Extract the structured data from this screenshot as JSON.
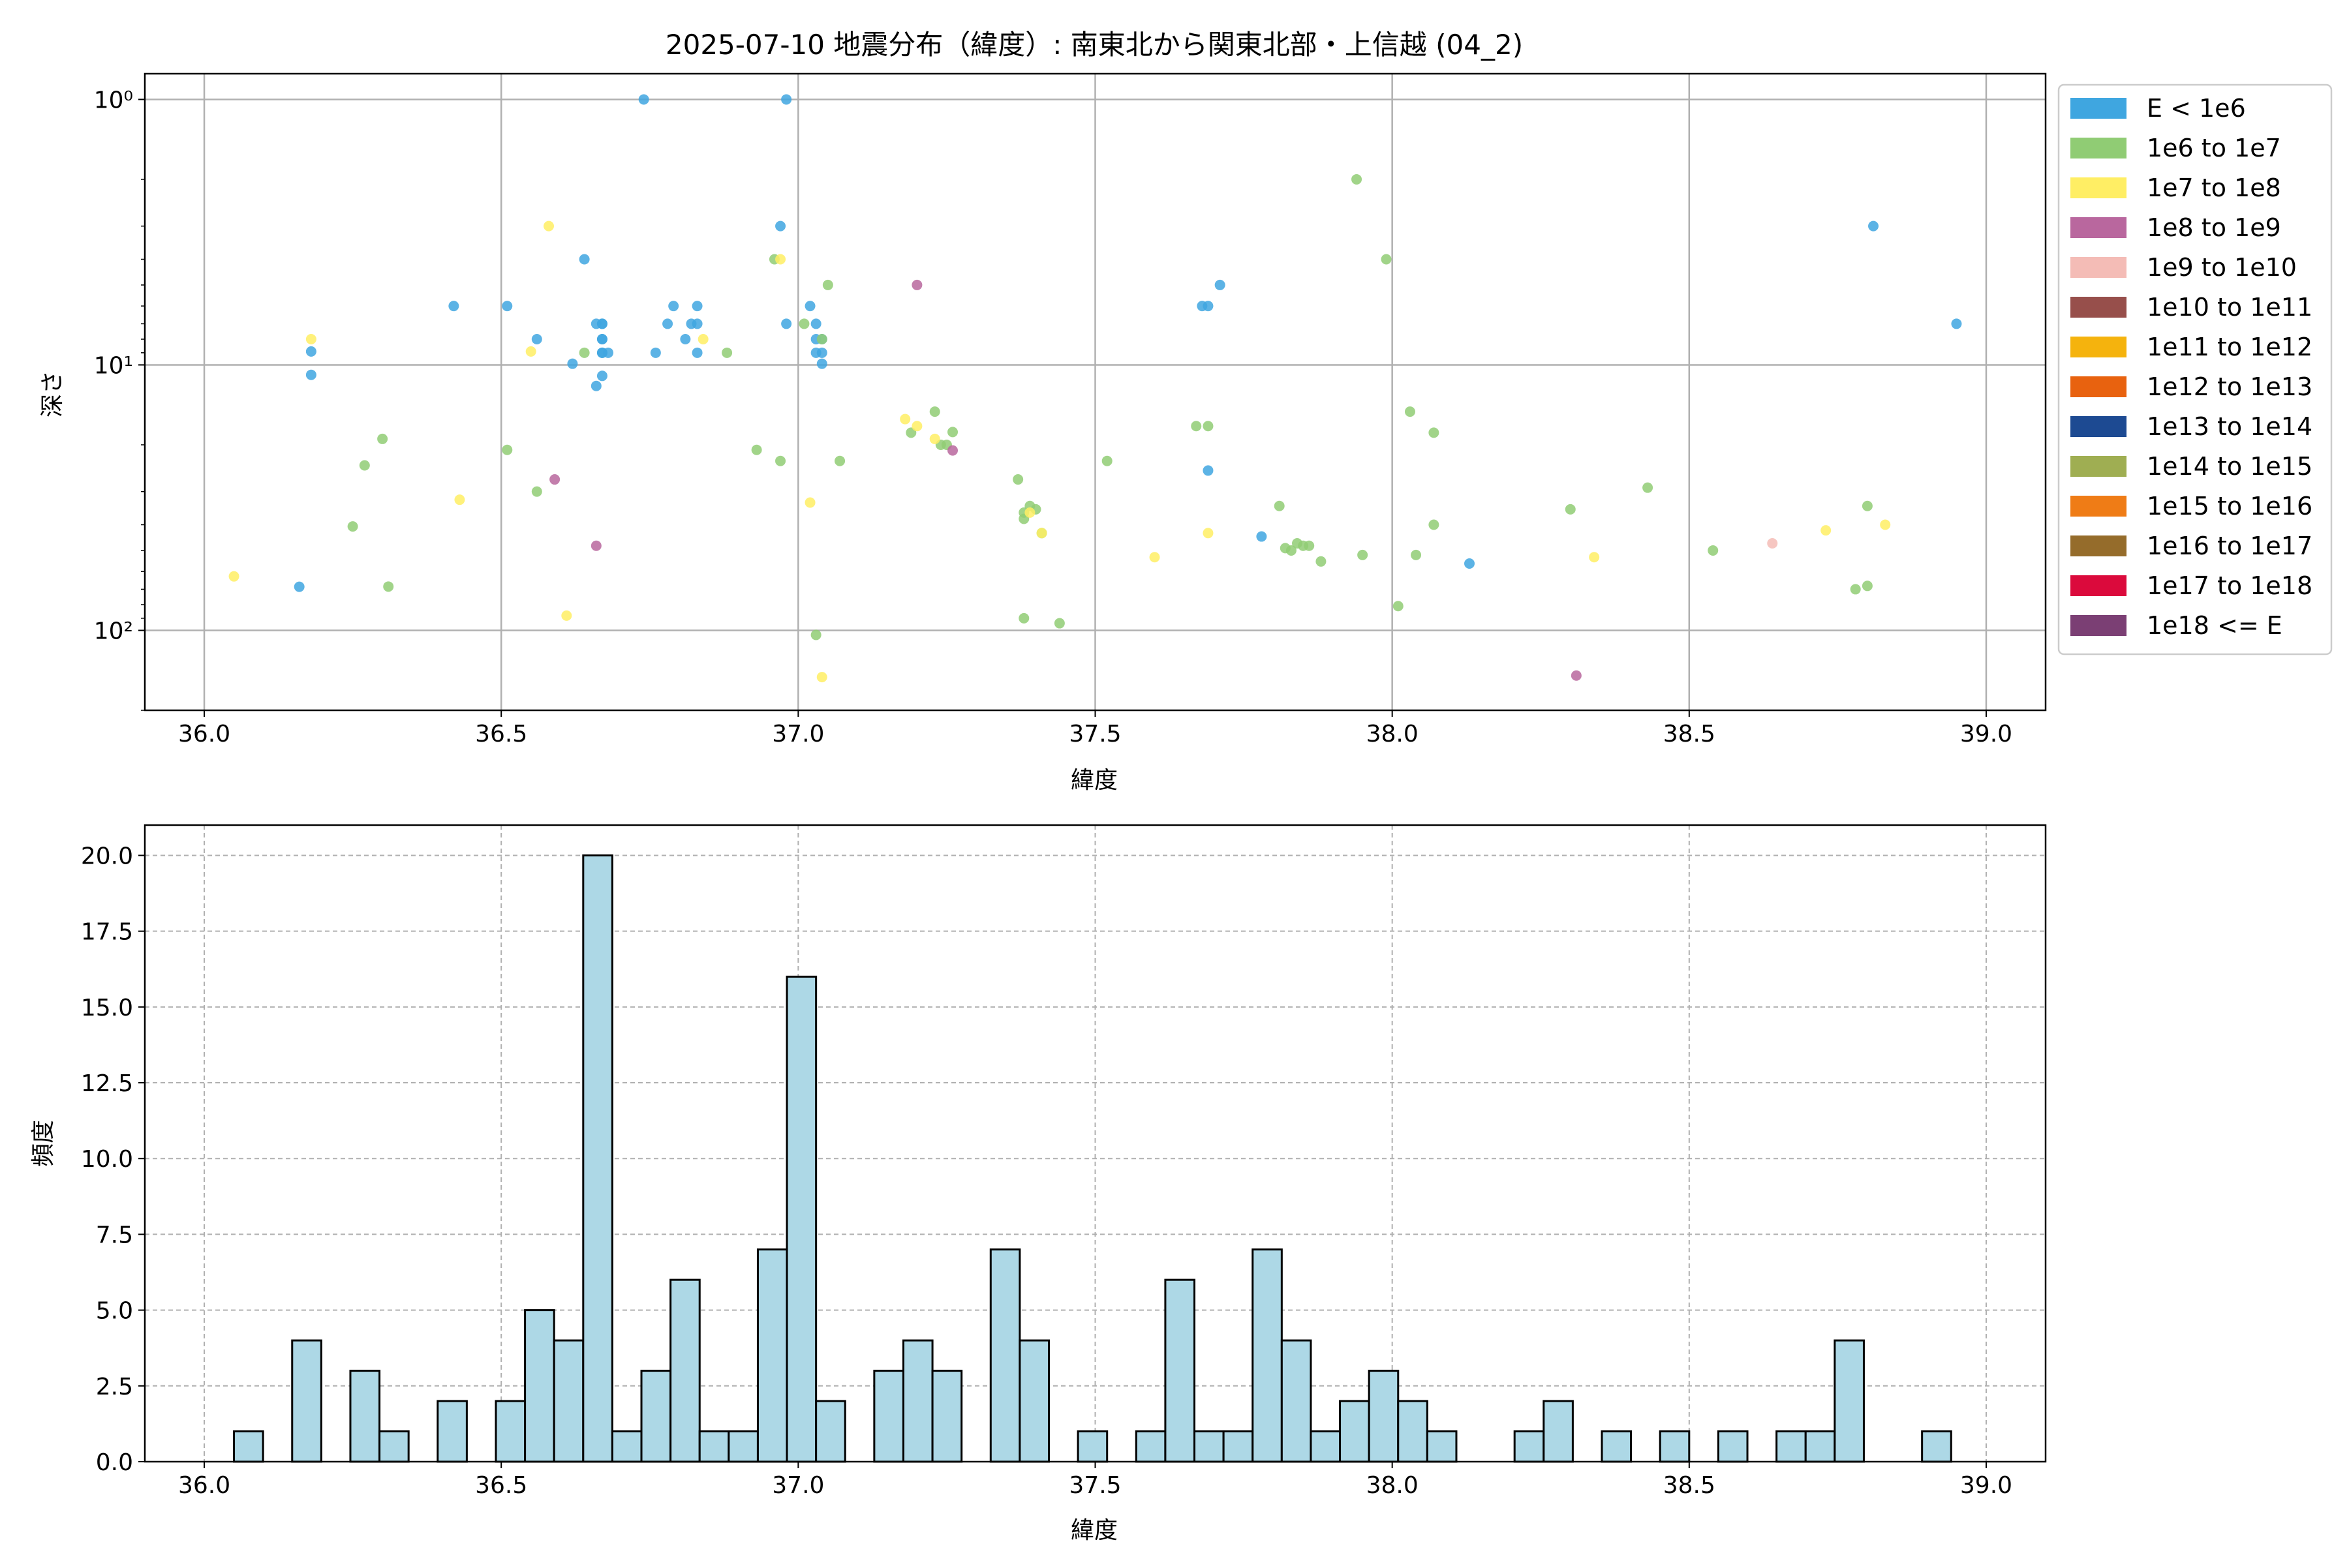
{
  "chart_data": [
    {
      "type": "scatter",
      "title": "2025-07-10 地震分布（緯度）: 南東北から関東北部・上信越 (04_2)",
      "xlabel": "緯度",
      "ylabel": "深さ",
      "xlim": [
        35.9,
        39.1
      ],
      "ylim": [
        200,
        0.8
      ],
      "y_scale": "log",
      "y_inverted": true,
      "xticks": [
        36.0,
        36.5,
        37.0,
        37.5,
        38.0,
        38.5,
        39.0
      ],
      "xtick_labels": [
        "36.0",
        "36.5",
        "37.0",
        "37.5",
        "38.0",
        "38.5",
        "39.0"
      ],
      "yticks": [
        1,
        10,
        100
      ],
      "ytick_labels": [
        "10⁰",
        "10¹",
        "10²"
      ],
      "grid": true,
      "legend_position": "outside-right",
      "legend": [
        {
          "label": "E < 1e6",
          "color": "#3fa6e0"
        },
        {
          "label": "1e6 to 1e7",
          "color": "#90cc74"
        },
        {
          "label": "1e7 to 1e8",
          "color": "#ffee64"
        },
        {
          "label": "1e8 to 1e9",
          "color": "#b9679e"
        },
        {
          "label": "1e9 to 1e10",
          "color": "#f4bcb6"
        },
        {
          "label": "1e10 to 1e11",
          "color": "#974f4b"
        },
        {
          "label": "1e11 to 1e12",
          "color": "#f5b30d"
        },
        {
          "label": "1e12 to 1e13",
          "color": "#e8620f"
        },
        {
          "label": "1e13 to 1e14",
          "color": "#1d4a92"
        },
        {
          "label": "1e14 to 1e15",
          "color": "#9fae52"
        },
        {
          "label": "1e15 to 1e16",
          "color": "#ef7c16"
        },
        {
          "label": "1e16 to 1e17",
          "color": "#956c2b"
        },
        {
          "label": "1e17 to 1e18",
          "color": "#db0a3c"
        },
        {
          "label": "1e18 <= E",
          "color": "#7b3f74"
        }
      ],
      "series": [
        {
          "color": "#3fa6e0",
          "points": [
            [
              36.16,
              68.5
            ],
            [
              36.18,
              8.9
            ],
            [
              36.18,
              10.9
            ],
            [
              36.42,
              6.0
            ],
            [
              36.51,
              6.0
            ],
            [
              36.56,
              8.0
            ],
            [
              36.62,
              9.9
            ],
            [
              36.64,
              4.0
            ],
            [
              36.66,
              12.0
            ],
            [
              36.66,
              7.0
            ],
            [
              36.67,
              7.0
            ],
            [
              36.67,
              8.0
            ],
            [
              36.67,
              9.0
            ],
            [
              36.67,
              11.0
            ],
            [
              36.67,
              7.0
            ],
            [
              36.67,
              8.0
            ],
            [
              36.67,
              9.0
            ],
            [
              36.68,
              9.0
            ],
            [
              36.74,
              1.0
            ],
            [
              36.76,
              9.0
            ],
            [
              36.78,
              7.0
            ],
            [
              36.79,
              6.0
            ],
            [
              36.81,
              8.0
            ],
            [
              36.82,
              7.0
            ],
            [
              36.83,
              7.0
            ],
            [
              36.83,
              9.0
            ],
            [
              36.83,
              6.0
            ],
            [
              36.97,
              3.0
            ],
            [
              36.98,
              1.0
            ],
            [
              36.98,
              7.0
            ],
            [
              37.02,
              6.0
            ],
            [
              37.03,
              7.0
            ],
            [
              37.03,
              8.0
            ],
            [
              37.03,
              9.0
            ],
            [
              37.04,
              8.0
            ],
            [
              37.04,
              9.0
            ],
            [
              37.04,
              9.9
            ],
            [
              37.68,
              6.0
            ],
            [
              37.69,
              6.0
            ],
            [
              37.69,
              25.0
            ],
            [
              37.71,
              5.0
            ],
            [
              37.78,
              44.3
            ],
            [
              38.13,
              56.0
            ],
            [
              38.81,
              3.0
            ],
            [
              38.95,
              7.0
            ]
          ]
        },
        {
          "color": "#90cc74",
          "points": [
            [
              36.25,
              40.6
            ],
            [
              36.27,
              23.9
            ],
            [
              36.3,
              19.0
            ],
            [
              36.31,
              68.4
            ],
            [
              36.51,
              20.9
            ],
            [
              36.56,
              30.0
            ],
            [
              36.64,
              9.0
            ],
            [
              36.88,
              9.0
            ],
            [
              36.93,
              20.9
            ],
            [
              36.96,
              4.0
            ],
            [
              36.97,
              23.0
            ],
            [
              37.01,
              7.0
            ],
            [
              37.03,
              104.0
            ],
            [
              37.04,
              8.0
            ],
            [
              37.05,
              5.0
            ],
            [
              37.07,
              23.0
            ],
            [
              37.19,
              18.0
            ],
            [
              37.23,
              15.0
            ],
            [
              37.24,
              20.0
            ],
            [
              37.25,
              20.0
            ],
            [
              37.26,
              17.9
            ],
            [
              37.37,
              27.0
            ],
            [
              37.38,
              36.0
            ],
            [
              37.38,
              38.0
            ],
            [
              37.38,
              90.0
            ],
            [
              37.39,
              34.0
            ],
            [
              37.4,
              35.0
            ],
            [
              37.41,
              43.0
            ],
            [
              37.44,
              94.0
            ],
            [
              37.52,
              23.0
            ],
            [
              37.67,
              17.0
            ],
            [
              37.69,
              17.0
            ],
            [
              37.81,
              34.0
            ],
            [
              37.82,
              49.0
            ],
            [
              37.83,
              50.0
            ],
            [
              37.84,
              47.0
            ],
            [
              37.85,
              48.0
            ],
            [
              37.86,
              48.0
            ],
            [
              37.88,
              55.0
            ],
            [
              37.94,
              2.0
            ],
            [
              37.95,
              52.0
            ],
            [
              37.99,
              4.0
            ],
            [
              38.01,
              81.0
            ],
            [
              38.03,
              15.0
            ],
            [
              38.04,
              52.0
            ],
            [
              38.07,
              18.0
            ],
            [
              38.07,
              40.0
            ],
            [
              38.3,
              35.0
            ],
            [
              38.43,
              29.0
            ],
            [
              38.54,
              50.0
            ],
            [
              38.78,
              70.0
            ],
            [
              38.8,
              34.0
            ],
            [
              38.8,
              68.0
            ]
          ]
        },
        {
          "color": "#ffee64",
          "points": [
            [
              36.05,
              62.6
            ],
            [
              36.18,
              8.0
            ],
            [
              36.43,
              32.2
            ],
            [
              36.55,
              8.9
            ],
            [
              36.58,
              3.0
            ],
            [
              36.61,
              88.0
            ],
            [
              36.84,
              8.0
            ],
            [
              36.97,
              4.0
            ],
            [
              37.02,
              33.0
            ],
            [
              37.04,
              150.0
            ],
            [
              37.18,
              16.0
            ],
            [
              37.2,
              17.0
            ],
            [
              37.23,
              19.0
            ],
            [
              37.39,
              36.0
            ],
            [
              37.41,
              43.0
            ],
            [
              37.6,
              53.0
            ],
            [
              37.69,
              43.0
            ],
            [
              38.34,
              53.0
            ],
            [
              38.73,
              42.0
            ],
            [
              38.83,
              40.0
            ]
          ]
        },
        {
          "color": "#b9679e",
          "points": [
            [
              36.59,
              27.0
            ],
            [
              36.66,
              48.0
            ],
            [
              37.2,
              5.0
            ],
            [
              37.26,
              21.0
            ],
            [
              38.31,
              148.0
            ]
          ]
        },
        {
          "color": "#f4bcb6",
          "points": [
            [
              38.64,
              47.0
            ]
          ]
        }
      ]
    },
    {
      "type": "bar",
      "title": "",
      "xlabel": "緯度",
      "ylabel": "頻度",
      "xlim": [
        35.9,
        39.1
      ],
      "ylim": [
        0,
        21
      ],
      "xticks": [
        36.0,
        36.5,
        37.0,
        37.5,
        38.0,
        38.5,
        39.0
      ],
      "xtick_labels": [
        "36.0",
        "36.5",
        "37.0",
        "37.5",
        "38.0",
        "38.5",
        "39.0"
      ],
      "yticks": [
        0,
        2.5,
        5,
        7.5,
        10,
        12.5,
        15,
        17.5,
        20
      ],
      "ytick_labels": [
        "0.0",
        "2.5",
        "5.0",
        "7.5",
        "10.0",
        "12.5",
        "15.0",
        "17.5",
        "20.0"
      ],
      "grid": true,
      "bar_color": "#add8e6",
      "edge_color": "#000000",
      "bin_start": 36.05,
      "bin_width": 0.049,
      "values": [
        1,
        0,
        4,
        0,
        3,
        1,
        0,
        2,
        0,
        2,
        5,
        4,
        20,
        1,
        3,
        6,
        1,
        1,
        7,
        16,
        2,
        0,
        3,
        4,
        3,
        0,
        7,
        4,
        0,
        1,
        0,
        1,
        6,
        1,
        1,
        7,
        4,
        1,
        2,
        3,
        2,
        1,
        0,
        0,
        1,
        2,
        0,
        1,
        0,
        1,
        0,
        1,
        0,
        1,
        1,
        4,
        0,
        0,
        1
      ]
    }
  ]
}
